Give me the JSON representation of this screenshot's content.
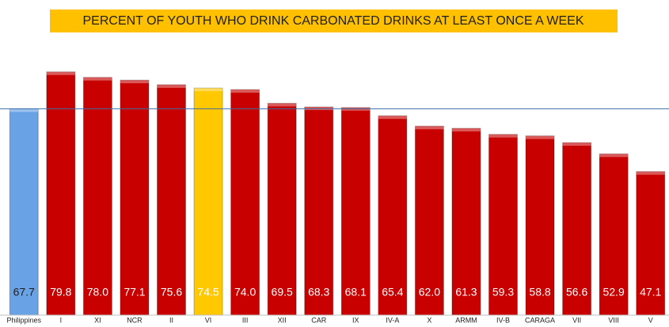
{
  "chart_data": {
    "type": "bar",
    "title": "PERCENT OF YOUTH WHO DRINK CARBONATED DRINKS AT LEAST ONCE A WEEK",
    "categories": [
      "Philippines",
      "I",
      "XI",
      "NCR",
      "II",
      "VI",
      "III",
      "XII",
      "CAR",
      "IX",
      "IV-A",
      "X",
      "ARMM",
      "IV-B",
      "CARAGA",
      "VII",
      "VIII",
      "V"
    ],
    "values": [
      67.7,
      79.8,
      78,
      77.1,
      75.6,
      74.5,
      74,
      69.5,
      68.3,
      68.1,
      65.4,
      62,
      61.3,
      59.3,
      58.8,
      56.6,
      52.9,
      47.1
    ],
    "value_labels": [
      "67.7",
      "79.8",
      "78.0",
      "77.1",
      "75.6",
      "74.5",
      "74.0",
      "69.5",
      "68.3",
      "68.1",
      "65.4",
      "62.0",
      "61.3",
      "59.3",
      "58.8",
      "56.6",
      "52.9",
      "47.1"
    ],
    "colors": [
      "#6aa2e6",
      "#c80000",
      "#c80000",
      "#c80000",
      "#c80000",
      "#ffc800",
      "#c80000",
      "#c80000",
      "#c80000",
      "#c80000",
      "#c80000",
      "#c80000",
      "#c80000",
      "#c80000",
      "#c80000",
      "#c80000",
      "#c80000",
      "#c80000"
    ],
    "ylim": [
      0,
      100
    ]
  }
}
